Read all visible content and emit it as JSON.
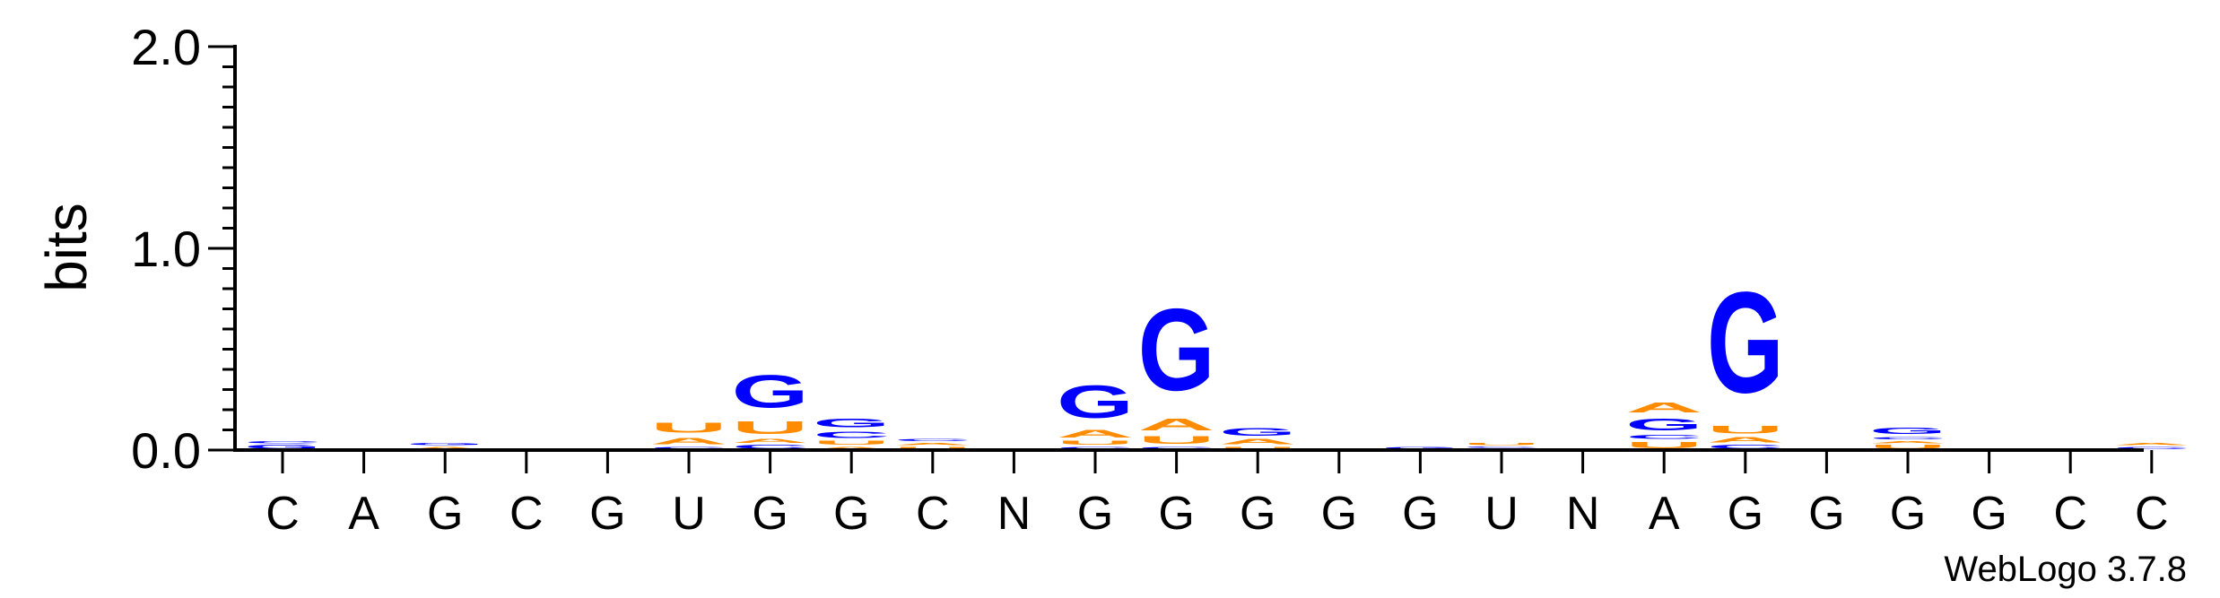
{
  "chart_data": {
    "type": "sequence-logo",
    "ylabel": "bits",
    "ylim": [
      0,
      2.0
    ],
    "yticks": [
      "0.0",
      "1.0",
      "2.0"
    ],
    "ytick_values": [
      0,
      1,
      2
    ],
    "credit": "WebLogo 3.7.8",
    "colors": {
      "G": "#0000ff",
      "C": "#0000ff",
      "A": "#ff8c00",
      "U": "#ff8c00"
    },
    "positions": [
      {
        "label": "C",
        "stack": [
          [
            "G",
            0.03
          ],
          [
            "C",
            0.02
          ]
        ]
      },
      {
        "label": "A",
        "stack": []
      },
      {
        "label": "G",
        "stack": [
          [
            "A",
            0.02
          ],
          [
            "G",
            0.02
          ]
        ]
      },
      {
        "label": "C",
        "stack": [
          [
            "G",
            0.01
          ]
        ]
      },
      {
        "label": "G",
        "stack": []
      },
      {
        "label": "U",
        "stack": [
          [
            "C",
            0.02
          ],
          [
            "A",
            0.05
          ],
          [
            "U",
            0.08
          ]
        ]
      },
      {
        "label": "G",
        "stack": [
          [
            "C",
            0.03
          ],
          [
            "A",
            0.03
          ],
          [
            "U",
            0.1
          ],
          [
            "G",
            0.26
          ]
        ]
      },
      {
        "label": "G",
        "stack": [
          [
            "A",
            0.02
          ],
          [
            "U",
            0.03
          ],
          [
            "C",
            0.05
          ],
          [
            "G",
            0.07
          ]
        ]
      },
      {
        "label": "C",
        "stack": [
          [
            "U",
            0.02
          ],
          [
            "A",
            0.02
          ],
          [
            "C",
            0.02
          ]
        ]
      },
      {
        "label": "N",
        "stack": [
          [
            "A",
            0.004
          ]
        ]
      },
      {
        "label": "G",
        "stack": [
          [
            "C",
            0.02
          ],
          [
            "U",
            0.03
          ],
          [
            "A",
            0.06
          ],
          [
            "G",
            0.26
          ]
        ]
      },
      {
        "label": "G",
        "stack": [
          [
            "C",
            0.02
          ],
          [
            "U",
            0.06
          ],
          [
            "A",
            0.09
          ],
          [
            "G",
            0.65
          ]
        ]
      },
      {
        "label": "G",
        "stack": [
          [
            "U",
            0.02
          ],
          [
            "A",
            0.04
          ],
          [
            "G",
            0.06
          ]
        ]
      },
      {
        "label": "G",
        "stack": []
      },
      {
        "label": "G",
        "stack": [
          [
            "G",
            0.02
          ]
        ]
      },
      {
        "label": "U",
        "stack": [
          [
            "A",
            0.01
          ],
          [
            "C",
            0.01
          ],
          [
            "U",
            0.02
          ]
        ]
      },
      {
        "label": "N",
        "stack": []
      },
      {
        "label": "A",
        "stack": [
          [
            "U",
            0.05
          ],
          [
            "C",
            0.03
          ],
          [
            "G",
            0.09
          ],
          [
            "A",
            0.08
          ]
        ]
      },
      {
        "label": "G",
        "stack": [
          [
            "C",
            0.03
          ],
          [
            "A",
            0.04
          ],
          [
            "U",
            0.06
          ],
          [
            "G",
            0.8
          ]
        ]
      },
      {
        "label": "G",
        "stack": []
      },
      {
        "label": "G",
        "stack": [
          [
            "U",
            0.03
          ],
          [
            "A",
            0.02
          ],
          [
            "C",
            0.02
          ],
          [
            "G",
            0.05
          ]
        ]
      },
      {
        "label": "G",
        "stack": []
      },
      {
        "label": "C",
        "stack": [
          [
            "G",
            0.01
          ]
        ]
      },
      {
        "label": "C",
        "stack": [
          [
            "C",
            0.02
          ],
          [
            "A",
            0.02
          ]
        ]
      }
    ]
  }
}
